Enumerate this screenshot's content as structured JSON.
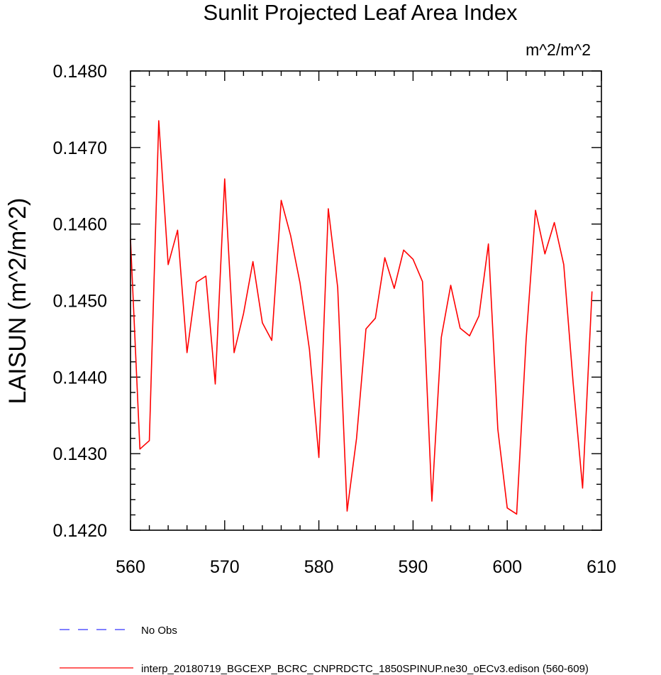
{
  "chart_data": {
    "type": "line",
    "title": "Sunlit Projected Leaf Area Index",
    "units": "m^2/m^2",
    "ylabel": "LAISUN  (m^2/m^2)",
    "xlabel": "",
    "xlim": [
      560,
      610
    ],
    "ylim": [
      0.142,
      0.148
    ],
    "xticks": [
      560,
      570,
      580,
      590,
      600,
      610
    ],
    "xtick_labels": [
      "560",
      "570",
      "580",
      "590",
      "600",
      "610"
    ],
    "yticks": [
      0.142,
      0.143,
      0.144,
      0.145,
      0.146,
      0.147,
      0.148
    ],
    "ytick_labels": [
      "0.1420",
      "0.1430",
      "0.1440",
      "0.1450",
      "0.1460",
      "0.1470",
      "0.1480"
    ],
    "grid": false,
    "legend_position": "bottom-left",
    "legend": [
      {
        "label": "No Obs",
        "color": "#0000ff",
        "dash": true
      },
      {
        "label": "interp_20180719_BGCEXP_BCRC_CNPRDCTC_1850SPINUP.ne30_oECv3.edison (560-609)",
        "color": "#ff0000",
        "dash": false
      }
    ],
    "series": [
      {
        "color": "#ff0000",
        "x": [
          560,
          561,
          562,
          563,
          564,
          565,
          566,
          567,
          568,
          569,
          570,
          571,
          572,
          573,
          574,
          575,
          576,
          577,
          578,
          579,
          580,
          581,
          582,
          583,
          584,
          585,
          586,
          587,
          588,
          589,
          590,
          591,
          592,
          593,
          594,
          595,
          596,
          597,
          598,
          599,
          600,
          601,
          602,
          603,
          604,
          605,
          606,
          607,
          608,
          609
        ],
        "values": [
          0.1458,
          0.14306,
          0.14317,
          0.14735,
          0.14547,
          0.14592,
          0.14432,
          0.14524,
          0.14532,
          0.14391,
          0.14659,
          0.14432,
          0.14483,
          0.14551,
          0.14471,
          0.14448,
          0.14631,
          0.14585,
          0.14523,
          0.14436,
          0.14295,
          0.1462,
          0.14517,
          0.14225,
          0.1432,
          0.14463,
          0.14477,
          0.14556,
          0.14516,
          0.14566,
          0.14554,
          0.14525,
          0.14238,
          0.14452,
          0.1452,
          0.14464,
          0.14454,
          0.1448,
          0.14574,
          0.14332,
          0.14229,
          0.14221,
          0.14448,
          0.14618,
          0.14561,
          0.14602,
          0.14547,
          0.14392,
          0.14255,
          0.14512
        ]
      }
    ]
  }
}
